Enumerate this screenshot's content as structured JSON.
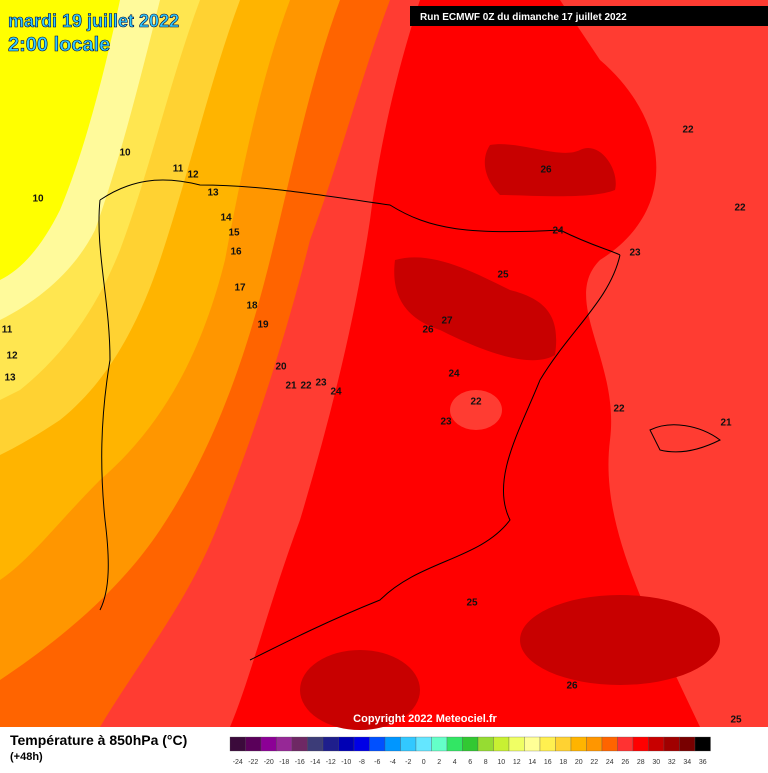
{
  "header": {
    "date": "mardi 19 juillet 2022",
    "time": "2:00 locale",
    "run": "Run ECMWF 0Z du dimanche 17 juillet 2022"
  },
  "contour_labels": [
    10,
    10,
    11,
    12,
    13,
    14,
    15,
    16,
    17,
    18,
    19,
    20,
    21,
    22,
    23,
    24,
    11,
    12,
    13,
    26,
    22,
    22,
    24,
    25,
    23,
    27,
    26,
    24,
    22,
    23,
    22,
    21,
    25,
    26,
    25
  ],
  "copyright": "Copyright 2022 Meteociel.fr",
  "legend": {
    "title": "Température à 850hPa (°C)",
    "lead": "(+48h)",
    "ticks": [
      -24,
      -22,
      -20,
      -18,
      -16,
      -14,
      -12,
      -10,
      -8,
      -6,
      -4,
      -2,
      0,
      2,
      4,
      6,
      8,
      10,
      12,
      14,
      16,
      18,
      20,
      22,
      24,
      26,
      28,
      30,
      32,
      34,
      36
    ],
    "colors": [
      "#3b0a3b",
      "#5a005a",
      "#8c0096",
      "#962896",
      "#6e2864",
      "#3c3c78",
      "#1e1e8c",
      "#0000b4",
      "#0000e6",
      "#0050ff",
      "#0096ff",
      "#32c8ff",
      "#64e6ff",
      "#64ffc8",
      "#32e664",
      "#32c832",
      "#96dc32",
      "#c8f032",
      "#f0ff64",
      "#ffff96",
      "#fff050",
      "#ffd232",
      "#ffb400",
      "#ff9600",
      "#ff6400",
      "#ff3232",
      "#ff0000",
      "#c80000",
      "#a00000",
      "#780000",
      "#000000"
    ]
  }
}
